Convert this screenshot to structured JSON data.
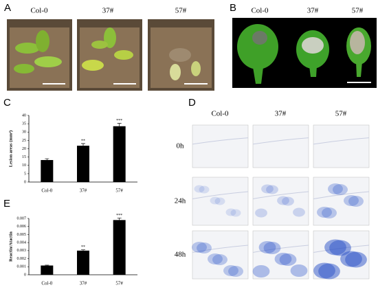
{
  "panel_a": {
    "label": "A",
    "columns": [
      "Col-0",
      "37#",
      "57#"
    ]
  },
  "panel_b": {
    "label": "B",
    "columns": [
      "Col-0",
      "37#",
      "57#"
    ]
  },
  "panel_d": {
    "label": "D",
    "columns": [
      "Col-0",
      "37#",
      "57#"
    ],
    "rows": [
      "0h",
      "24h",
      "48h"
    ]
  },
  "chart_data": [
    {
      "type": "bar",
      "panel_label": "C",
      "ylabel": "Lesion areas (mm²)",
      "categories": [
        "Col-0",
        "37#",
        "57#"
      ],
      "values": [
        13.2,
        21.8,
        33.5
      ],
      "errors": [
        0.8,
        1.3,
        1.7
      ],
      "annotations": [
        null,
        "**",
        "***"
      ],
      "color": "#000000",
      "ylim": [
        0,
        40
      ],
      "yticks": [
        0,
        5,
        10,
        15,
        20,
        25,
        30,
        35,
        40
      ]
    },
    {
      "type": "bar",
      "panel_label": "E",
      "ylabel": "Reactin/Atactin",
      "categories": [
        "Col-0",
        "37#",
        "57#"
      ],
      "values": [
        0.00115,
        0.003,
        0.0068
      ],
      "errors": [
        5e-05,
        0.0001,
        0.00025
      ],
      "annotations": [
        null,
        "**",
        "***"
      ],
      "color": "#000000",
      "ylim": [
        0,
        0.007
      ],
      "yticks": [
        0,
        0.001,
        0.002,
        0.003,
        0.004,
        0.005,
        0.006,
        0.007
      ]
    }
  ]
}
